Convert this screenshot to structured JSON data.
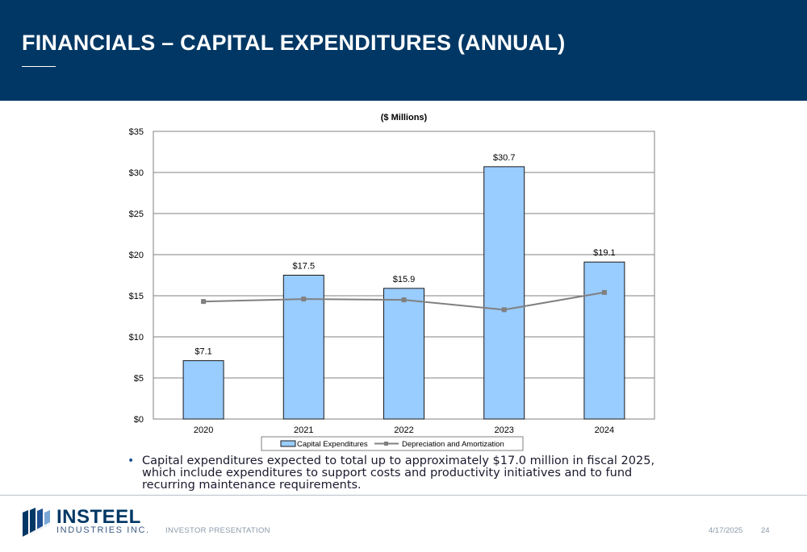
{
  "header": {
    "title": "FINANCIALS – CAPITAL EXPENDITURES (ANNUAL)"
  },
  "chart_data": {
    "type": "bar",
    "title": "($ Millions)",
    "categories": [
      "2020",
      "2021",
      "2022",
      "2023",
      "2024"
    ],
    "series": [
      {
        "name": "Capital Expenditures",
        "type": "bar",
        "values": [
          7.1,
          17.5,
          15.9,
          30.7,
          19.1
        ],
        "labels": [
          "$7.1",
          "$17.5",
          "$15.9",
          "$30.7",
          "$19.1"
        ]
      },
      {
        "name": "Depreciation and Amortization",
        "type": "line",
        "values": [
          14.3,
          14.6,
          14.5,
          13.3,
          15.4
        ]
      }
    ],
    "ylim": [
      0,
      35
    ],
    "yticks": [
      0,
      5,
      10,
      15,
      20,
      25,
      30,
      35
    ],
    "ytick_labels": [
      "$0",
      "$5",
      "$10",
      "$15",
      "$20",
      "$25",
      "$30",
      "$35"
    ],
    "grid": true,
    "legend": "bottom",
    "colors": {
      "bar_fill": "#99ccff",
      "bar_stroke": "#1a1a1a",
      "line": "#808080",
      "grid": "#808080"
    }
  },
  "bullets": [
    "Capital expenditures expected to total up to approximately $17.0 million in fiscal 2025, which include expenditures to support costs and productivity initiatives and to fund recurring maintenance requirements."
  ],
  "footer": {
    "logo_name": "INSTEEL",
    "logo_sub": "INDUSTRIES INC.",
    "label": "INVESTOR PRESENTATION",
    "date": "4/17/2025",
    "page": "24"
  },
  "colors": {
    "header_bg": "#003764",
    "brand": "#003764"
  }
}
